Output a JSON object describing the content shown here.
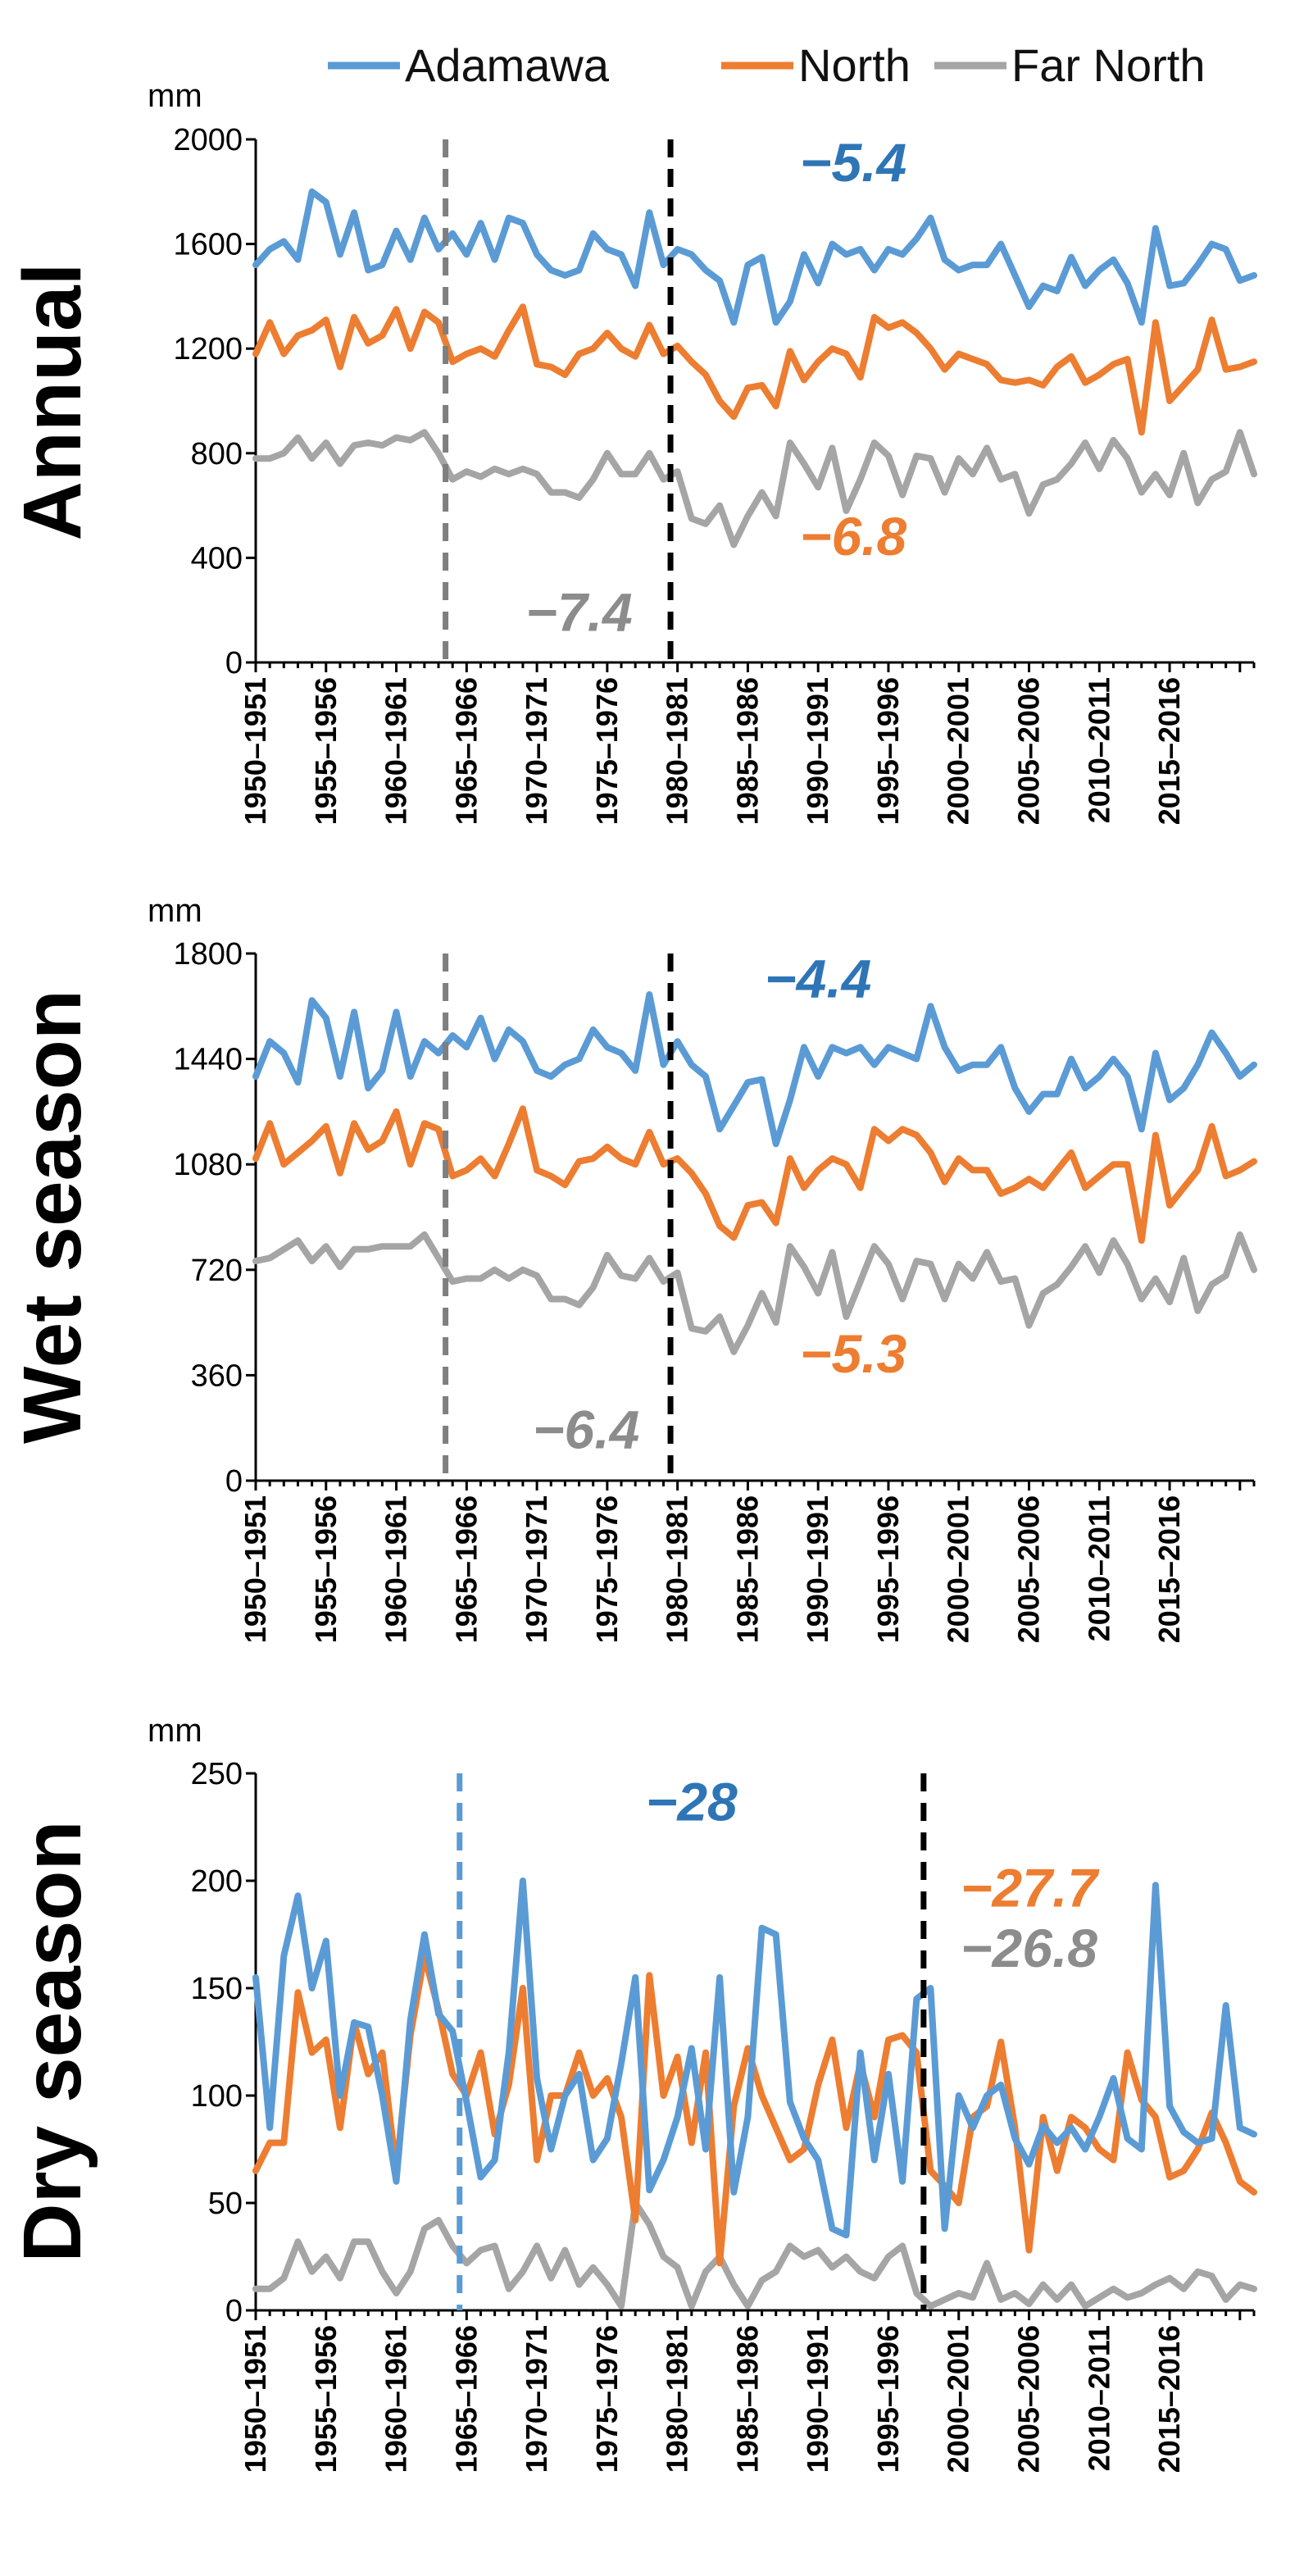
{
  "colors": {
    "Adamawa": "#5B9BD5",
    "North": "#ED7D31",
    "Far North": "#A5A5A5",
    "black": "#000000",
    "annot_blue": "#2E75B6",
    "annot_orange": "#ED7D31",
    "annot_gray": "#8C8C8C",
    "vline_gray": "#7F7F7F",
    "vline_blue": "#5B9BD5"
  },
  "legend": [
    {
      "name": "Adamawa",
      "color": "#5B9BD5"
    },
    {
      "name": "North",
      "color": "#ED7D31"
    },
    {
      "name": "Far North",
      "color": "#A5A5A5"
    }
  ],
  "chart_data": [
    {
      "type": "line",
      "title": "Annual",
      "unit": "mm",
      "ylim": [
        0,
        2000
      ],
      "yticks": [
        "0",
        "400",
        "800",
        "1200",
        "1600",
        "2000"
      ],
      "ytick_values": [
        0,
        400,
        800,
        1200,
        1600,
        2000
      ],
      "xlabels": [
        "1950–1951",
        "1955–1956",
        "1960–1961",
        "1965–1966",
        "1970–1971",
        "1975–1976",
        "1980–1981",
        "1985–1986",
        "1990–1991",
        "1995–1996",
        "2000–2001",
        "2005–2006",
        "2010–2011",
        "2015–2016"
      ],
      "x_start": 1950,
      "vlines": [
        {
          "x": 1963.5,
          "color": "#7F7F7F"
        },
        {
          "x": 1979.5,
          "color": "#000000"
        }
      ],
      "annotations": [
        {
          "text": "−5.4",
          "x": 1992.5,
          "y": 1840,
          "color": "#2E75B6"
        },
        {
          "text": "−6.8",
          "x": 1992.5,
          "y": 410,
          "color": "#ED7D31"
        },
        {
          "text": "−7.4",
          "x": 1973,
          "y": 120,
          "color": "#8C8C8C"
        }
      ],
      "series": [
        {
          "name": "Adamawa",
          "color": "#5B9BD5",
          "values": [
            1520,
            1580,
            1610,
            1540,
            1800,
            1760,
            1560,
            1720,
            1500,
            1520,
            1650,
            1540,
            1700,
            1580,
            1640,
            1560,
            1680,
            1540,
            1700,
            1680,
            1560,
            1500,
            1480,
            1500,
            1640,
            1580,
            1560,
            1440,
            1720,
            1520,
            1580,
            1560,
            1500,
            1460,
            1300,
            1520,
            1550,
            1300,
            1380,
            1560,
            1450,
            1600,
            1560,
            1580,
            1500,
            1580,
            1560,
            1620,
            1700,
            1540,
            1500,
            1520,
            1520,
            1600,
            1480,
            1360,
            1440,
            1420,
            1550,
            1440,
            1500,
            1540,
            1450,
            1300,
            1660,
            1440,
            1450,
            1520,
            1600,
            1580,
            1460,
            1480
          ]
        },
        {
          "name": "North",
          "color": "#ED7D31",
          "values": [
            1180,
            1300,
            1180,
            1250,
            1270,
            1310,
            1130,
            1320,
            1220,
            1250,
            1350,
            1200,
            1340,
            1300,
            1150,
            1180,
            1200,
            1170,
            1270,
            1360,
            1140,
            1130,
            1100,
            1180,
            1200,
            1260,
            1200,
            1170,
            1290,
            1180,
            1210,
            1150,
            1100,
            1000,
            940,
            1050,
            1060,
            980,
            1190,
            1080,
            1150,
            1200,
            1180,
            1090,
            1320,
            1280,
            1300,
            1260,
            1200,
            1120,
            1180,
            1160,
            1140,
            1080,
            1070,
            1080,
            1060,
            1130,
            1170,
            1070,
            1100,
            1140,
            1160,
            880,
            1300,
            1000,
            1060,
            1120,
            1310,
            1120,
            1130,
            1150
          ]
        },
        {
          "name": "Far North",
          "color": "#A5A5A5",
          "values": [
            780,
            780,
            800,
            860,
            780,
            840,
            760,
            830,
            840,
            830,
            860,
            850,
            880,
            800,
            700,
            730,
            710,
            740,
            720,
            740,
            720,
            650,
            650,
            630,
            700,
            800,
            720,
            720,
            800,
            700,
            730,
            550,
            530,
            600,
            450,
            560,
            650,
            560,
            840,
            760,
            670,
            820,
            580,
            700,
            840,
            790,
            640,
            790,
            780,
            650,
            780,
            720,
            820,
            700,
            720,
            570,
            680,
            700,
            760,
            840,
            740,
            850,
            780,
            650,
            720,
            640,
            800,
            610,
            700,
            730,
            880,
            720
          ]
        }
      ]
    },
    {
      "type": "line",
      "title": "Wet season",
      "unit": "mm",
      "ylim": [
        0,
        1800
      ],
      "yticks": [
        "0",
        "360",
        "720",
        "1080",
        "1440",
        "1800"
      ],
      "ytick_values": [
        0,
        360,
        720,
        1080,
        1440,
        1800
      ],
      "xlabels": [
        "1950–1951",
        "1955–1956",
        "1960–1961",
        "1965–1966",
        "1970–1971",
        "1975–1976",
        "1980–1981",
        "1985–1986",
        "1990–1991",
        "1995–1996",
        "2000–2001",
        "2005–2006",
        "2010–2011",
        "2015–2016"
      ],
      "x_start": 1950,
      "vlines": [
        {
          "x": 1963.5,
          "color": "#7F7F7F"
        },
        {
          "x": 1979.5,
          "color": "#000000"
        }
      ],
      "annotations": [
        {
          "text": "−4.4",
          "x": 1990,
          "y": 1650,
          "color": "#2E75B6"
        },
        {
          "text": "−5.3",
          "x": 1992.5,
          "y": 370,
          "color": "#ED7D31"
        },
        {
          "text": "−6.4",
          "x": 1973.5,
          "y": 110,
          "color": "#8C8C8C"
        }
      ],
      "series": [
        {
          "name": "Adamawa",
          "color": "#5B9BD5",
          "values": [
            1380,
            1500,
            1460,
            1360,
            1640,
            1580,
            1380,
            1600,
            1340,
            1400,
            1600,
            1380,
            1500,
            1460,
            1520,
            1480,
            1580,
            1440,
            1540,
            1500,
            1400,
            1380,
            1420,
            1440,
            1540,
            1480,
            1460,
            1400,
            1660,
            1420,
            1500,
            1420,
            1380,
            1200,
            1280,
            1360,
            1370,
            1150,
            1300,
            1480,
            1380,
            1480,
            1460,
            1480,
            1420,
            1480,
            1460,
            1440,
            1620,
            1480,
            1400,
            1420,
            1420,
            1480,
            1340,
            1260,
            1320,
            1320,
            1440,
            1340,
            1380,
            1440,
            1380,
            1200,
            1460,
            1300,
            1340,
            1420,
            1530,
            1460,
            1380,
            1420
          ]
        },
        {
          "name": "North",
          "color": "#ED7D31",
          "values": [
            1100,
            1220,
            1080,
            1120,
            1160,
            1210,
            1050,
            1220,
            1130,
            1160,
            1260,
            1080,
            1220,
            1200,
            1040,
            1060,
            1100,
            1040,
            1150,
            1270,
            1060,
            1040,
            1010,
            1090,
            1100,
            1140,
            1100,
            1080,
            1190,
            1080,
            1100,
            1050,
            980,
            870,
            830,
            940,
            950,
            880,
            1100,
            1000,
            1060,
            1100,
            1080,
            1000,
            1200,
            1160,
            1200,
            1180,
            1120,
            1020,
            1100,
            1060,
            1060,
            980,
            1000,
            1030,
            1000,
            1060,
            1120,
            1000,
            1040,
            1080,
            1080,
            820,
            1180,
            940,
            1000,
            1060,
            1210,
            1040,
            1060,
            1090
          ]
        },
        {
          "name": "Far North",
          "color": "#A5A5A5",
          "values": [
            750,
            760,
            790,
            820,
            750,
            800,
            730,
            790,
            790,
            800,
            800,
            800,
            840,
            760,
            680,
            690,
            690,
            720,
            690,
            720,
            700,
            620,
            620,
            600,
            660,
            770,
            700,
            690,
            760,
            680,
            710,
            520,
            510,
            560,
            440,
            530,
            640,
            540,
            800,
            730,
            640,
            780,
            560,
            680,
            800,
            740,
            620,
            750,
            740,
            620,
            740,
            690,
            780,
            680,
            690,
            530,
            640,
            670,
            730,
            800,
            710,
            820,
            740,
            620,
            690,
            610,
            760,
            580,
            670,
            700,
            840,
            720
          ]
        }
      ]
    },
    {
      "type": "line",
      "title": "Dry season",
      "unit": "mm",
      "ylim": [
        0,
        250
      ],
      "yticks": [
        "0",
        "50",
        "100",
        "150",
        "200",
        "250"
      ],
      "ytick_values": [
        0,
        50,
        100,
        150,
        200,
        250
      ],
      "xlabels": [
        "1950–1951",
        "1955–1956",
        "1960–1961",
        "1965–1966",
        "1970–1971",
        "1975–1976",
        "1980–1981",
        "1985–1986",
        "1990–1991",
        "1995–1996",
        "2000–2001",
        "2005–2006",
        "2010–2011",
        "2015–2016"
      ],
      "x_start": 1950,
      "vlines": [
        {
          "x": 1964.5,
          "color": "#5B9BD5"
        },
        {
          "x": 1997.5,
          "color": "#000000"
        }
      ],
      "annotations": [
        {
          "text": "−28",
          "x": 1981,
          "y": 228,
          "color": "#2E75B6"
        },
        {
          "text": "−27.7",
          "x": 2005,
          "y": 188,
          "color": "#ED7D31"
        },
        {
          "text": "−26.8",
          "x": 2005,
          "y": 160,
          "color": "#8C8C8C"
        }
      ],
      "series": [
        {
          "name": "Adamawa",
          "color": "#5B9BD5",
          "values": [
            155,
            85,
            165,
            193,
            150,
            172,
            100,
            134,
            132,
            100,
            60,
            135,
            175,
            138,
            130,
            97,
            62,
            70,
            120,
            200,
            108,
            75,
            100,
            110,
            70,
            80,
            115,
            155,
            56,
            70,
            90,
            122,
            75,
            155,
            55,
            90,
            178,
            175,
            97,
            80,
            70,
            38,
            35,
            120,
            70,
            110,
            60,
            145,
            150,
            38,
            100,
            85,
            100,
            105,
            80,
            68,
            86,
            78,
            85,
            75,
            90,
            108,
            80,
            75,
            198,
            95,
            83,
            78,
            80,
            142,
            85,
            82
          ]
        },
        {
          "name": "North",
          "color": "#ED7D31",
          "values": [
            65,
            78,
            78,
            148,
            120,
            126,
            85,
            134,
            110,
            120,
            65,
            128,
            165,
            140,
            110,
            100,
            120,
            82,
            105,
            150,
            70,
            100,
            100,
            120,
            100,
            108,
            90,
            42,
            156,
            100,
            118,
            78,
            120,
            22,
            95,
            122,
            100,
            85,
            70,
            75,
            105,
            126,
            85,
            115,
            90,
            126,
            128,
            120,
            65,
            58,
            50,
            90,
            95,
            125,
            85,
            28,
            90,
            65,
            90,
            85,
            75,
            70,
            120,
            98,
            90,
            62,
            65,
            75,
            92,
            78,
            60,
            55
          ]
        },
        {
          "name": "Far North",
          "color": "#A5A5A5",
          "values": [
            10,
            10,
            15,
            32,
            18,
            25,
            15,
            32,
            32,
            18,
            8,
            18,
            38,
            42,
            30,
            22,
            28,
            30,
            10,
            18,
            30,
            15,
            28,
            12,
            20,
            12,
            2,
            50,
            40,
            25,
            20,
            2,
            18,
            25,
            12,
            2,
            14,
            18,
            30,
            25,
            28,
            20,
            25,
            18,
            15,
            25,
            30,
            8,
            2,
            5,
            8,
            6,
            22,
            5,
            8,
            3,
            12,
            5,
            12,
            2,
            6,
            10,
            6,
            8,
            12,
            15,
            10,
            18,
            16,
            5,
            12,
            10
          ]
        }
      ]
    }
  ]
}
